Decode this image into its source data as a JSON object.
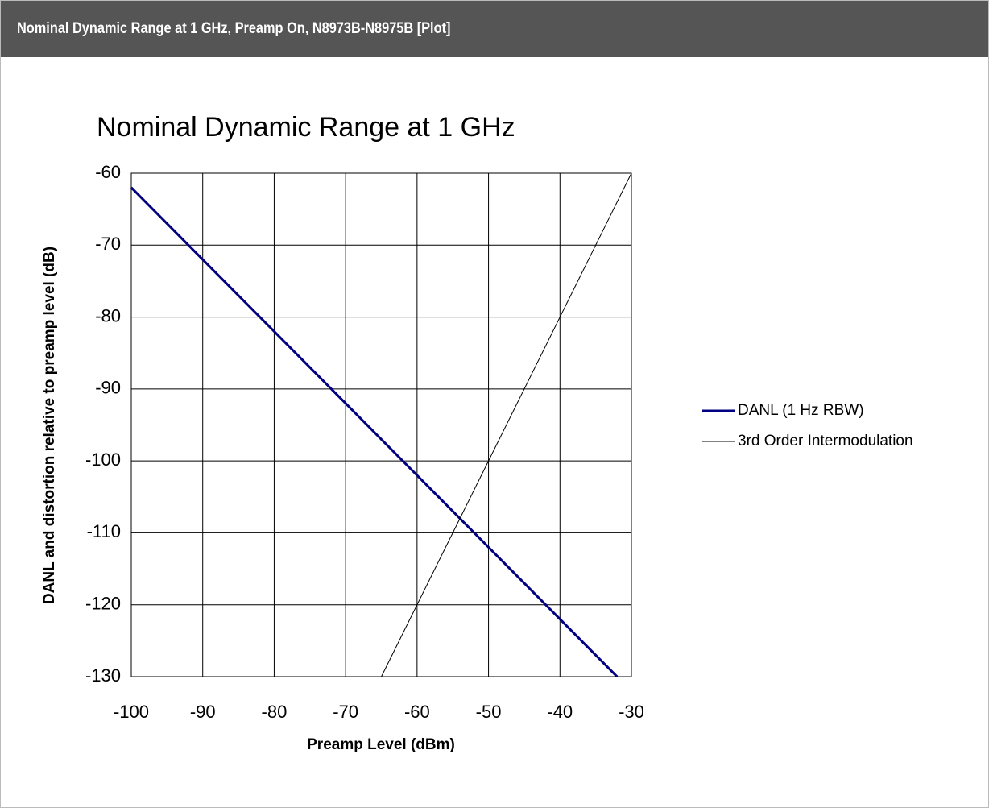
{
  "header": {
    "title": "Nominal Dynamic Range at 1 GHz, Preamp On, N8973B-N8975B [Plot]"
  },
  "chart_data": {
    "type": "line",
    "title": "Nominal Dynamic Range at 1 GHz",
    "x_label": "Preamp Level (dBm)",
    "y_label": "DANL and distortion relative to preamp level (dB)",
    "series": [
      {
        "name": "DANL (1 Hz RBW)",
        "color": "#000080",
        "x": [
          -100,
          -32
        ],
        "values": [
          -62,
          -130
        ]
      },
      {
        "name": "3rd Order Intermodulation",
        "color": "#000000",
        "x": [
          -65,
          -30
        ],
        "values": [
          -130,
          -60
        ]
      }
    ],
    "xlim": [
      -100,
      -30
    ],
    "xticks": [
      -100,
      -90,
      -80,
      -70,
      -60,
      -50,
      -40,
      -30
    ],
    "ylim": [
      -130,
      -60
    ],
    "yticks": [
      -60,
      -70,
      -80,
      -90,
      -100,
      -110,
      -120,
      -130
    ],
    "grid": true,
    "legend": "right"
  }
}
